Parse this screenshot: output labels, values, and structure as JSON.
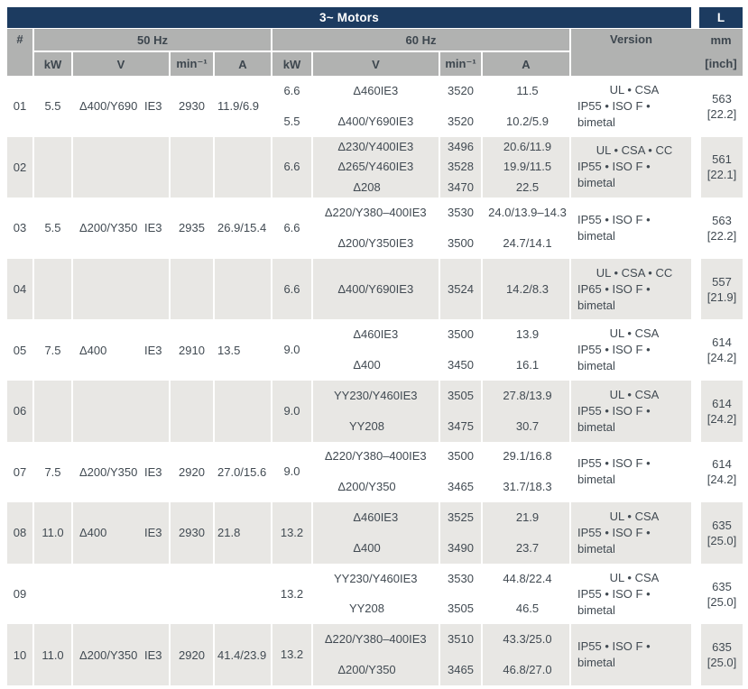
{
  "header": {
    "title": "3~ Motors",
    "l_title": "L",
    "num": "#",
    "group_50": "50 Hz",
    "group_60": "60 Hz",
    "version": "Version",
    "mm": "mm",
    "inch": "[inch]",
    "col_kw": "kW",
    "col_v": "V",
    "col_min": "min⁻¹",
    "col_a": "A"
  },
  "colors": {
    "navy": "#1c3b60",
    "header_gray": "#b1b2b1",
    "row_alt_gray": "#e8e7e4",
    "text": "#414a52"
  },
  "rows": [
    {
      "id": "01",
      "hz50": {
        "kw": "5.5",
        "v": "Δ400/Y690",
        "ie": "IE3",
        "rpm": "2930",
        "a": "11.9/6.9"
      },
      "hz60_kw": [
        "6.6",
        "5.5"
      ],
      "hz60": [
        {
          "v": "Δ460",
          "ie": "IE3",
          "rpm": "3520",
          "a": "11.5"
        },
        {
          "v": "Δ400/Y690",
          "ie": "IE3",
          "rpm": "3520",
          "a": "10.2/5.9"
        }
      ],
      "version": [
        "UL • CSA",
        "IP55 • ISO F • bimetal"
      ],
      "l_mm": "563",
      "l_inch": "[22.2]"
    },
    {
      "id": "02",
      "hz50": null,
      "hz60_kw": [
        "6.6"
      ],
      "hz60": [
        {
          "v": "Δ230/Y400",
          "ie": "IE3",
          "rpm": "3496",
          "a": "20.6/11.9"
        },
        {
          "v": "Δ265/Y460",
          "ie": "IE3",
          "rpm": "3528",
          "a": "19.9/11.5"
        },
        {
          "v": "Δ208",
          "ie": "",
          "rpm": "3470",
          "a": "22.5"
        }
      ],
      "version": [
        "UL • CSA • CC",
        "IP55 • ISO F • bimetal"
      ],
      "l_mm": "561",
      "l_inch": "[22.1]"
    },
    {
      "id": "03",
      "hz50": {
        "kw": "5.5",
        "v": "Δ200/Y350",
        "ie": "IE3",
        "rpm": "2935",
        "a": "26.9/15.4"
      },
      "hz60_kw": [
        "6.6"
      ],
      "hz60": [
        {
          "v": "Δ220/Y380–400",
          "ie": "IE3",
          "rpm": "3530",
          "a": "24.0/13.9–14.3"
        },
        {
          "v": "Δ200/Y350",
          "ie": "IE3",
          "rpm": "3500",
          "a": "24.7/14.1"
        }
      ],
      "version": [
        "IP55 • ISO F • bimetal"
      ],
      "l_mm": "563",
      "l_inch": "[22.2]"
    },
    {
      "id": "04",
      "hz50": null,
      "hz60_kw": [
        "6.6"
      ],
      "hz60": [
        {
          "v": "Δ400/Y690",
          "ie": "IE3",
          "rpm": "3524",
          "a": "14.2/8.3"
        }
      ],
      "version": [
        "UL • CSA • CC",
        "IP65 • ISO F • bimetal"
      ],
      "l_mm": "557",
      "l_inch": "[21.9]"
    },
    {
      "id": "05",
      "hz50": {
        "kw": "7.5",
        "v": "Δ400",
        "ie": "IE3",
        "rpm": "2910",
        "a": "13.5"
      },
      "hz60_kw": [
        "9.0"
      ],
      "hz60": [
        {
          "v": "Δ460",
          "ie": "IE3",
          "rpm": "3500",
          "a": "13.9"
        },
        {
          "v": "Δ400",
          "ie": "",
          "rpm": "3450",
          "a": "16.1"
        }
      ],
      "version": [
        "UL • CSA",
        "IP55 • ISO F • bimetal"
      ],
      "l_mm": "614",
      "l_inch": "[24.2]"
    },
    {
      "id": "06",
      "hz50": null,
      "hz60_kw": [
        "9.0"
      ],
      "hz60": [
        {
          "v": "YY230/Y460",
          "ie": "IE3",
          "rpm": "3505",
          "a": "27.8/13.9"
        },
        {
          "v": "YY208",
          "ie": "",
          "rpm": "3475",
          "a": "30.7"
        }
      ],
      "version": [
        "UL • CSA",
        "IP55 • ISO F • bimetal"
      ],
      "l_mm": "614",
      "l_inch": "[24.2]"
    },
    {
      "id": "07",
      "hz50": {
        "kw": "7.5",
        "v": "Δ200/Y350",
        "ie": "IE3",
        "rpm": "2920",
        "a": "27.0/15.6"
      },
      "hz60_kw": [
        "9.0"
      ],
      "hz60": [
        {
          "v": "Δ220/Y380–400",
          "ie": "IE3",
          "rpm": "3500",
          "a": "29.1/16.8"
        },
        {
          "v": "Δ200/Y350",
          "ie": "",
          "rpm": "3465",
          "a": "31.7/18.3"
        }
      ],
      "version": [
        "IP55 • ISO F • bimetal"
      ],
      "l_mm": "614",
      "l_inch": "[24.2]"
    },
    {
      "id": "08",
      "hz50": {
        "kw": "11.0",
        "v": "Δ400",
        "ie": "IE3",
        "rpm": "2930",
        "a": "21.8"
      },
      "hz60_kw": [
        "13.2"
      ],
      "hz60": [
        {
          "v": "Δ460",
          "ie": "IE3",
          "rpm": "3525",
          "a": "21.9"
        },
        {
          "v": "Δ400",
          "ie": "",
          "rpm": "3490",
          "a": "23.7"
        }
      ],
      "version": [
        "UL • CSA",
        "IP55 • ISO F • bimetal"
      ],
      "l_mm": "635",
      "l_inch": "[25.0]"
    },
    {
      "id": "09",
      "hz50": null,
      "hz60_kw": [
        "13.2"
      ],
      "hz60": [
        {
          "v": "YY230/Y460",
          "ie": "IE3",
          "rpm": "3530",
          "a": "44.8/22.4"
        },
        {
          "v": "YY208",
          "ie": "",
          "rpm": "3505",
          "a": "46.5"
        }
      ],
      "version": [
        "UL • CSA",
        "IP55 • ISO F • bimetal"
      ],
      "l_mm": "635",
      "l_inch": "[25.0]"
    },
    {
      "id": "10",
      "hz50": {
        "kw": "11.0",
        "v": "Δ200/Y350",
        "ie": "IE3",
        "rpm": "2920",
        "a": "41.4/23.9"
      },
      "hz60_kw": [
        "13.2"
      ],
      "hz60": [
        {
          "v": "Δ220/Y380–400",
          "ie": "IE3",
          "rpm": "3510",
          "a": "43.3/25.0"
        },
        {
          "v": "Δ200/Y350",
          "ie": "",
          "rpm": "3465",
          "a": "46.8/27.0"
        }
      ],
      "version": [
        "IP55 • ISO F • bimetal"
      ],
      "l_mm": "635",
      "l_inch": "[25.0]"
    }
  ]
}
